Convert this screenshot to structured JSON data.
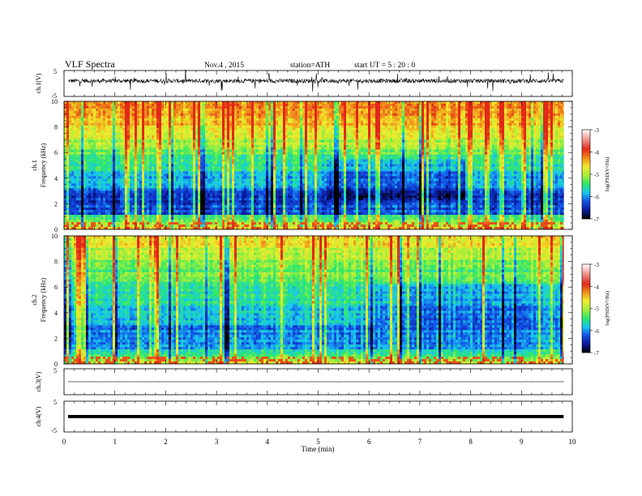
{
  "header": {
    "title": "VLF  Spectra",
    "date": "Nov.4  , 2015",
    "station": "station=ATH",
    "start": "start  UT  =   5  : 20 : 0"
  },
  "chart_data": [
    {
      "type": "line",
      "channel": "ch.1",
      "ylabel": "ch.1(V)",
      "ylim": [
        -5,
        5
      ],
      "yticks": [
        "5",
        "-5"
      ],
      "xlim": [
        0,
        10
      ],
      "baseline": 1.0,
      "noise_amplitude": 0.8
    },
    {
      "type": "heatmap",
      "channel": "ch.1",
      "ylabel": [
        "ch.1",
        "Frequency  (kHz)"
      ],
      "xlim": [
        0,
        10
      ],
      "ylim": [
        0,
        10
      ],
      "yticks": [
        "0",
        "2",
        "4",
        "6",
        "8",
        "10"
      ],
      "colorbar": {
        "label": "log(PSD(V²/Hz)",
        "min": -7,
        "max": -3,
        "ticks": [
          "-3",
          "-4",
          "-5",
          "-6",
          "-7"
        ]
      }
    },
    {
      "type": "heatmap",
      "channel": "ch.2",
      "ylabel": [
        "ch.2",
        "Frequency  (kHz)"
      ],
      "xlim": [
        0,
        10
      ],
      "ylim": [
        0,
        10
      ],
      "yticks": [
        "0",
        "2",
        "4",
        "6",
        "8",
        "10"
      ],
      "colorbar": {
        "label": "log(PSD(V²/Hz)",
        "min": -7,
        "max": -3,
        "ticks": [
          "-3",
          "-4",
          "-5",
          "-6",
          "-7"
        ]
      }
    },
    {
      "type": "line",
      "channel": "ch.3",
      "ylabel": "ch.3(V)",
      "ylim": [
        -5,
        5
      ],
      "yticks": [
        "5"
      ],
      "xlim": [
        0,
        10
      ],
      "baseline": 0,
      "noise_amplitude": 0.05
    },
    {
      "type": "line",
      "channel": "ch.4",
      "ylabel": "ch.4(V)",
      "ylim": [
        -5,
        5
      ],
      "yticks": [
        "5",
        "-5"
      ],
      "xlim": [
        0,
        10
      ],
      "baseline": 0,
      "noise_amplitude": 0.0
    }
  ],
  "xaxis": {
    "label": "Time  (min)",
    "ticks": [
      0,
      1,
      2,
      3,
      4,
      5,
      6,
      7,
      8,
      9,
      10
    ],
    "data_end": 9.83
  },
  "colorscale": [
    "#000000",
    "#0a1a9c",
    "#1450e6",
    "#18c8f0",
    "#2ee86a",
    "#a8ee3a",
    "#f0ec2c",
    "#f08c1a",
    "#e2281a",
    "#f7c8c8",
    "#ffffff"
  ]
}
